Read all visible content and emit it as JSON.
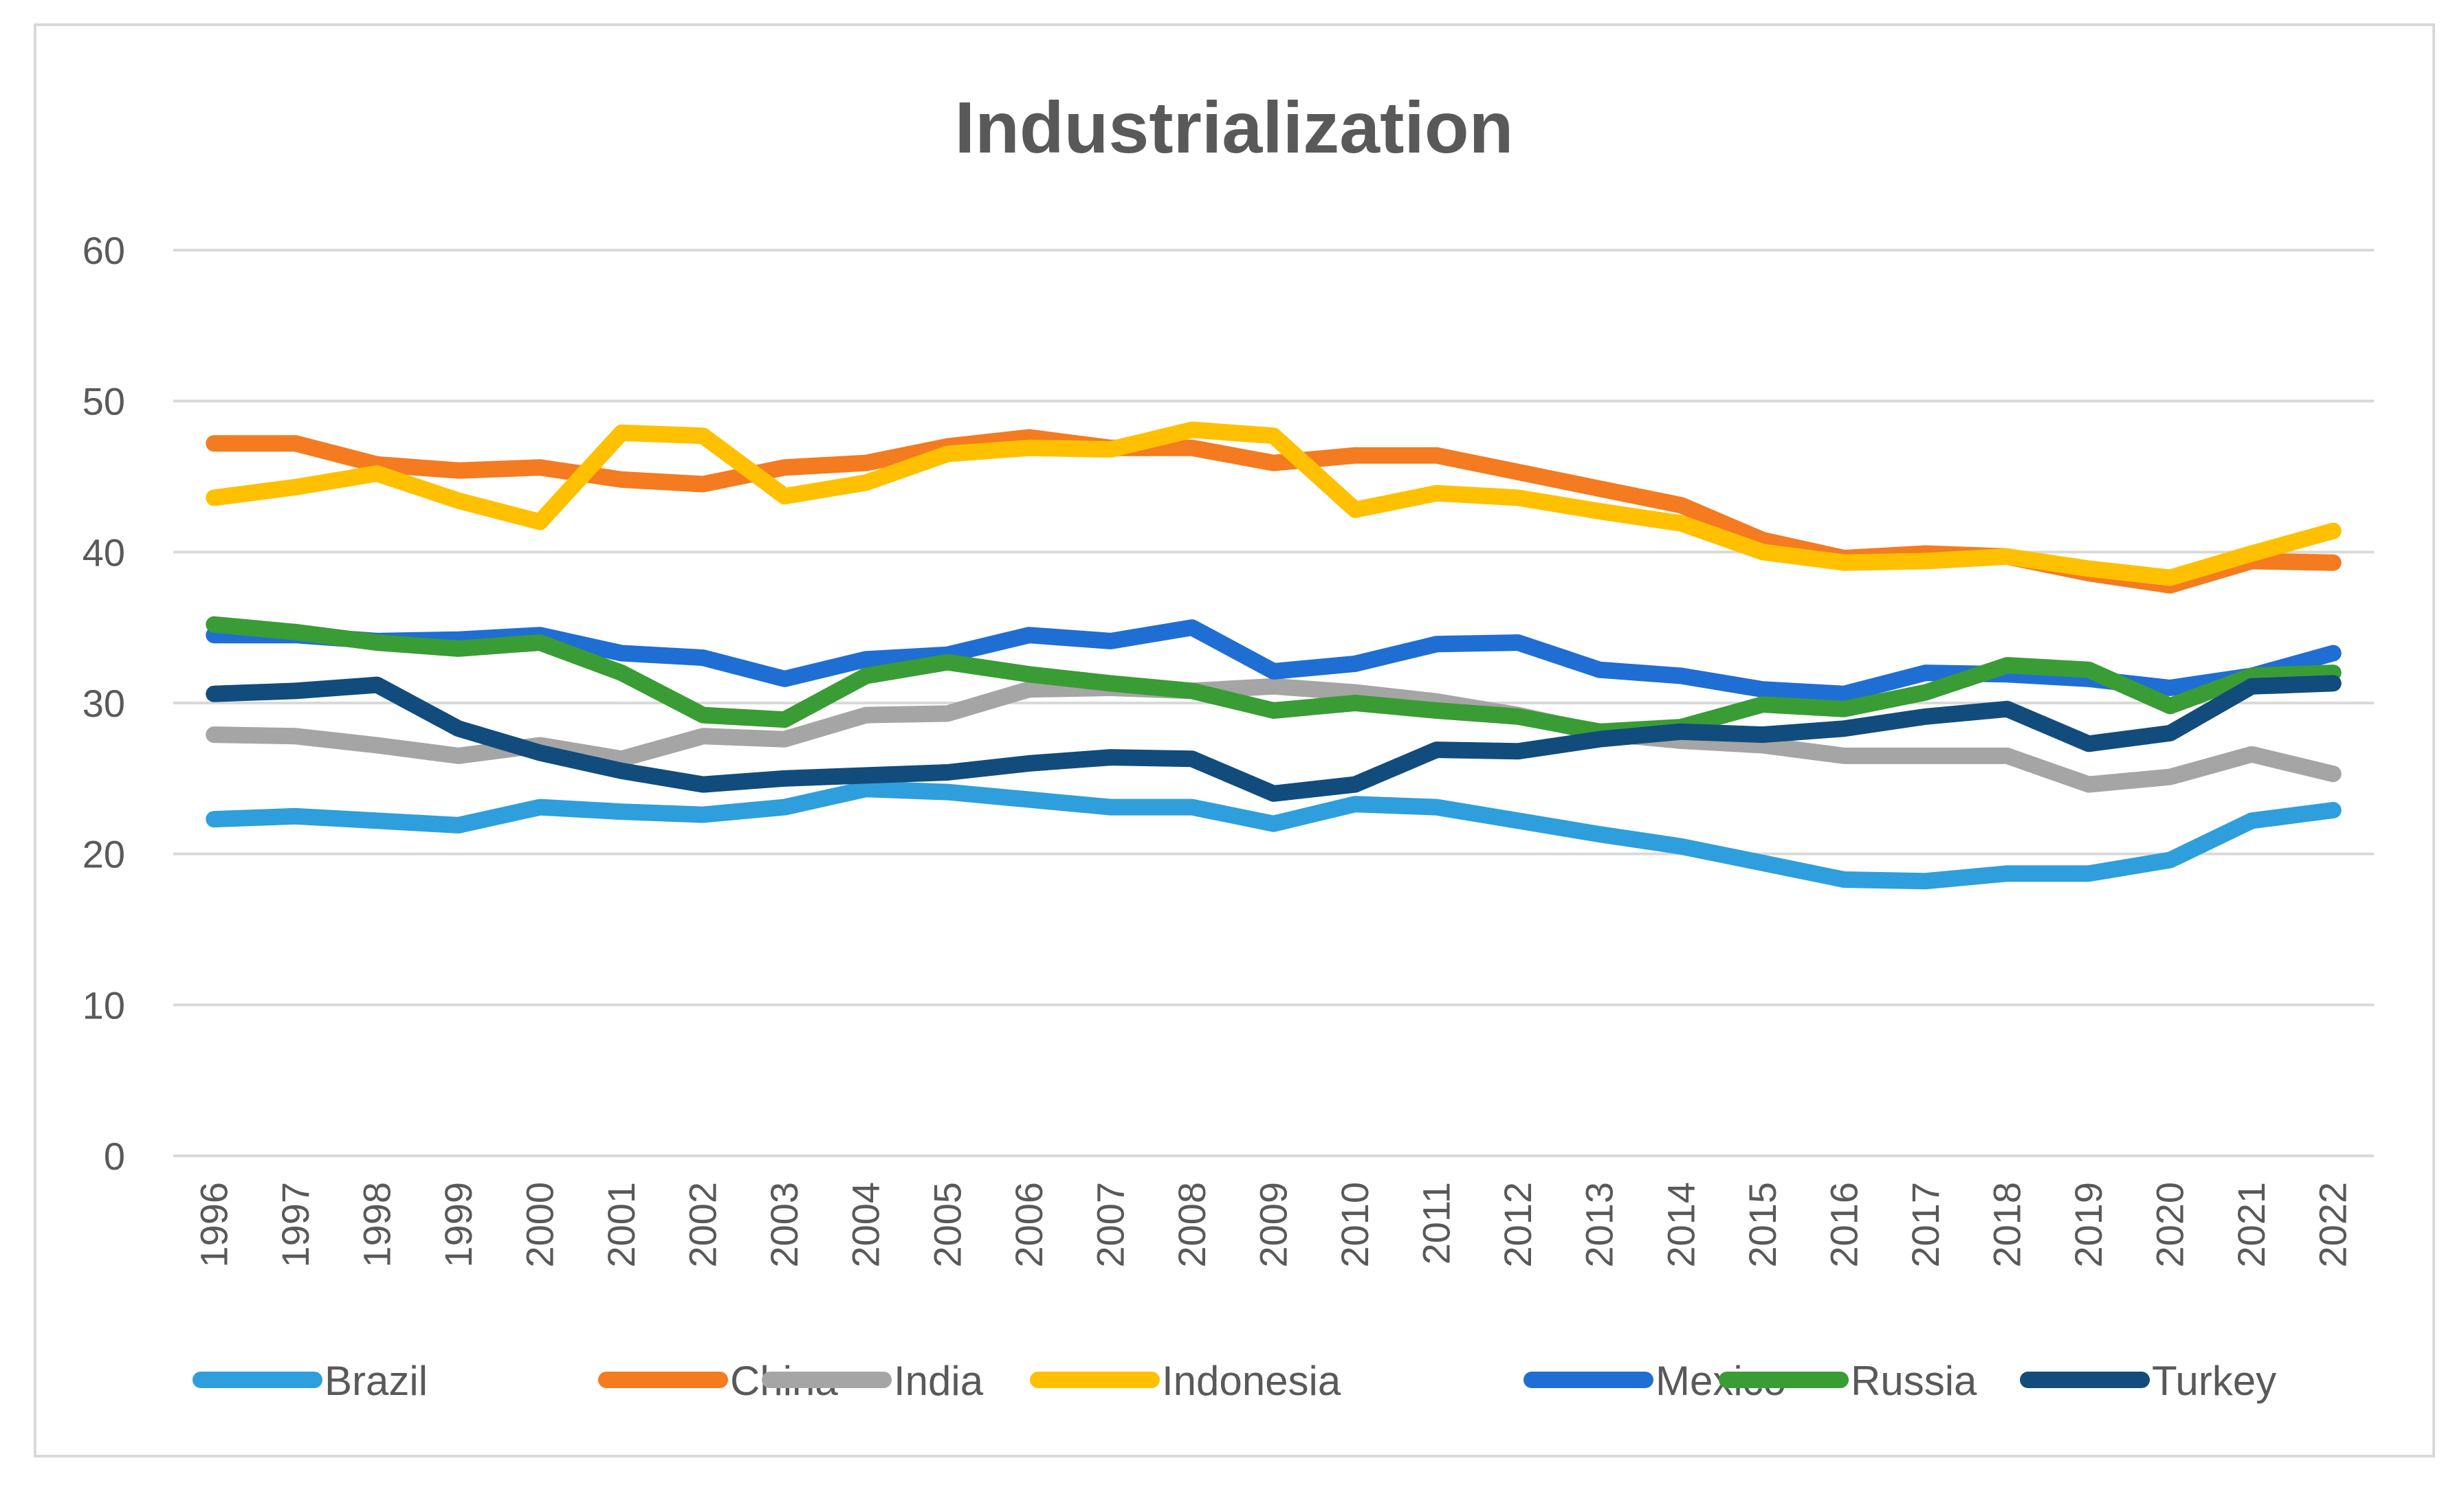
{
  "chart_data": {
    "type": "line",
    "title": "Industrialization",
    "xlabel": "",
    "ylabel": "",
    "ylim": [
      0,
      60
    ],
    "y_ticks": [
      "0",
      "10",
      "20",
      "30",
      "40",
      "50",
      "60"
    ],
    "grid": true,
    "legend_position": "bottom",
    "categories": [
      "1996",
      "1997",
      "1998",
      "1999",
      "2000",
      "2001",
      "2002",
      "2003",
      "2004",
      "2005",
      "2006",
      "2007",
      "2008",
      "2009",
      "2010",
      "2011",
      "2012",
      "2013",
      "2014",
      "2015",
      "2016",
      "2017",
      "2018",
      "2019",
      "2020",
      "2021",
      "2022"
    ],
    "series": [
      {
        "name": "Brazil",
        "color": "#2e9fdc",
        "values": [
          22.3,
          22.5,
          22.2,
          21.9,
          23.1,
          22.8,
          22.6,
          23.1,
          24.3,
          24.1,
          23.6,
          23.1,
          23.1,
          22.0,
          23.3,
          23.1,
          22.2,
          21.3,
          20.5,
          19.4,
          18.3,
          18.2,
          18.7,
          18.7,
          19.6,
          22.2,
          22.9
        ]
      },
      {
        "name": "China",
        "color": "#f47b20",
        "values": [
          47.2,
          47.2,
          45.8,
          45.4,
          45.6,
          44.8,
          44.5,
          45.6,
          45.9,
          47.0,
          47.6,
          46.9,
          46.9,
          45.9,
          46.4,
          46.4,
          45.3,
          44.2,
          43.1,
          40.8,
          39.6,
          39.9,
          39.7,
          38.6,
          37.8,
          39.4,
          39.3
        ]
      },
      {
        "name": "India",
        "color": "#a5a5a5",
        "values": [
          27.9,
          27.8,
          27.2,
          26.5,
          27.2,
          26.3,
          27.8,
          27.6,
          29.2,
          29.3,
          30.9,
          31.0,
          30.8,
          31.1,
          30.7,
          30.1,
          29.2,
          28.0,
          27.5,
          27.2,
          26.5,
          26.5,
          26.5,
          24.6,
          25.1,
          26.6,
          25.3
        ]
      },
      {
        "name": "Indonesia",
        "color": "#ffc000",
        "values": [
          43.6,
          44.3,
          45.2,
          43.4,
          42.0,
          47.9,
          47.7,
          43.7,
          44.6,
          46.5,
          46.9,
          46.8,
          48.1,
          47.7,
          42.8,
          43.9,
          43.6,
          42.7,
          41.9,
          40.0,
          39.3,
          39.4,
          39.7,
          38.9,
          38.3,
          39.9,
          41.4
        ]
      },
      {
        "name": "Mexico",
        "color": "#1f6ed4",
        "values": [
          34.5,
          34.5,
          34.1,
          34.2,
          34.5,
          33.3,
          33.0,
          31.6,
          32.9,
          33.2,
          34.5,
          34.1,
          35.0,
          32.1,
          32.6,
          33.9,
          34.0,
          32.2,
          31.8,
          30.9,
          30.6,
          32.0,
          31.9,
          31.6,
          31.0,
          31.8,
          33.3
        ]
      },
      {
        "name": "Russia",
        "color": "#3a9c35",
        "values": [
          35.2,
          34.7,
          34.0,
          33.6,
          34.0,
          32.0,
          29.2,
          28.9,
          31.8,
          32.7,
          31.9,
          31.3,
          30.8,
          29.5,
          30.0,
          29.5,
          29.1,
          28.1,
          28.4,
          29.9,
          29.6,
          30.7,
          32.5,
          32.2,
          29.8,
          31.8,
          32.0
        ]
      },
      {
        "name": "Turkey",
        "color": "#124c7d",
        "values": [
          30.6,
          30.8,
          31.2,
          28.3,
          26.7,
          25.5,
          24.6,
          25.0,
          25.2,
          25.4,
          26.0,
          26.4,
          26.3,
          24.0,
          24.6,
          26.9,
          26.8,
          27.6,
          28.1,
          27.9,
          28.3,
          29.1,
          29.6,
          27.3,
          28.0,
          31.1,
          31.3
        ]
      }
    ]
  }
}
